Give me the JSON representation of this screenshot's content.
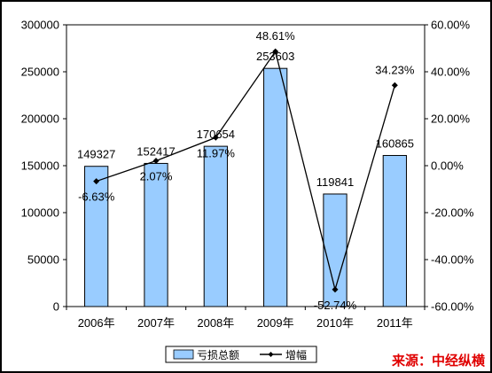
{
  "chart_data": {
    "type": "bar",
    "categories": [
      "2006年",
      "2007年",
      "2008年",
      "2009年",
      "2010年",
      "2011年"
    ],
    "series": [
      {
        "name": "亏损总额",
        "kind": "bar",
        "axis": "left",
        "values": [
          149327,
          152417,
          170654,
          253603,
          119841,
          160865
        ],
        "labels": [
          "149327",
          "152417",
          "170654",
          "253603",
          "119841",
          "160865"
        ]
      },
      {
        "name": "增幅",
        "kind": "line",
        "axis": "right",
        "values": [
          -6.63,
          2.07,
          11.97,
          48.61,
          -52.74,
          34.23
        ],
        "labels": [
          "-6.63%",
          "2.07%",
          "11.97%",
          "48.61%",
          "-52.74%",
          "34.23%"
        ]
      }
    ],
    "y_left": {
      "min": 0,
      "max": 300000,
      "ticks": [
        "0",
        "50000",
        "100000",
        "150000",
        "200000",
        "250000",
        "300000"
      ]
    },
    "y_right": {
      "min": -60,
      "max": 60,
      "ticks": [
        "-60.00%",
        "-40.00%",
        "-20.00%",
        "0.00%",
        "20.00%",
        "40.00%",
        "60.00%"
      ]
    },
    "grid": false,
    "legend_position": "bottom",
    "colors": {
      "bar_fill": "#99CCFF",
      "bar_stroke": "#000000",
      "line": "#000000"
    }
  },
  "source_note": "来源：中经纵横"
}
